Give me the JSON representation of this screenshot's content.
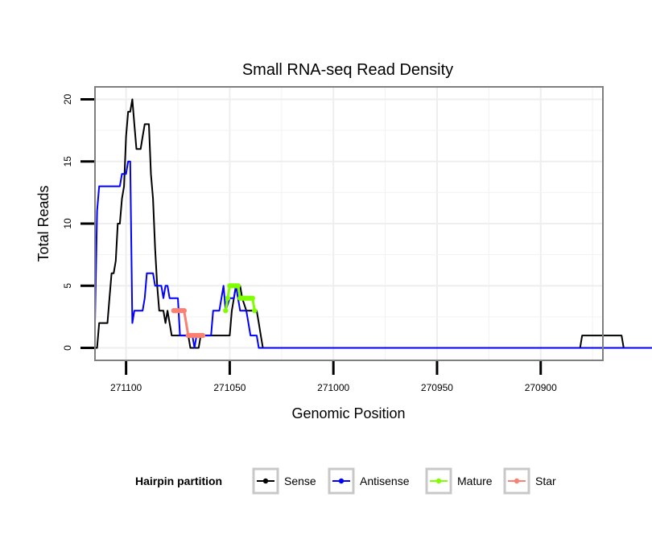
{
  "chart_data": {
    "type": "line",
    "title": "Small RNA-seq Read Density",
    "xlabel": "Genomic Position",
    "ylabel": "Total Reads",
    "x_reversed": true,
    "xlim": [
      271115,
      270870
    ],
    "ylim": [
      -1,
      21
    ],
    "x_ticks": [
      271100,
      271050,
      271000,
      270950,
      270900
    ],
    "x_tick_labels": [
      "271100",
      "271050",
      "271000",
      "270950",
      "270900"
    ],
    "y_ticks": [
      0,
      5,
      10,
      15,
      20
    ],
    "y_tick_labels": [
      "0",
      "5",
      "10",
      "15",
      "20"
    ],
    "grid": true,
    "legend": {
      "title": "Hairpin partition",
      "position": "bottom",
      "entries": [
        {
          "name": "Sense",
          "color": "#000000"
        },
        {
          "name": "Antisense",
          "color": "#0000ff"
        },
        {
          "name": "Mature",
          "color": "#7fff00"
        },
        {
          "name": "Star",
          "color": "#fa8072"
        }
      ]
    },
    "series": [
      {
        "name": "Sense",
        "color": "#000000",
        "points": [
          [
            271115,
            0
          ],
          [
            271114,
            0
          ],
          [
            271113,
            2
          ],
          [
            271109,
            2
          ],
          [
            271108,
            4
          ],
          [
            271107,
            6
          ],
          [
            271106,
            6
          ],
          [
            271105,
            7
          ],
          [
            271104,
            10
          ],
          [
            271103,
            10
          ],
          [
            271102,
            12
          ],
          [
            271101,
            13
          ],
          [
            271100,
            17
          ],
          [
            271099,
            19
          ],
          [
            271098,
            19
          ],
          [
            271097,
            20
          ],
          [
            271096,
            18
          ],
          [
            271095,
            16
          ],
          [
            271093,
            16
          ],
          [
            271092,
            17
          ],
          [
            271091,
            18
          ],
          [
            271089,
            18
          ],
          [
            271088,
            14
          ],
          [
            271087,
            12
          ],
          [
            271086,
            8
          ],
          [
            271085,
            5
          ],
          [
            271084,
            3
          ],
          [
            271082,
            3
          ],
          [
            271081,
            2
          ],
          [
            271080,
            3
          ],
          [
            271079,
            2
          ],
          [
            271078,
            1
          ],
          [
            271070,
            1
          ],
          [
            271069,
            0
          ],
          [
            271065,
            0
          ],
          [
            271064,
            1
          ],
          [
            271050,
            1
          ],
          [
            271049,
            3
          ],
          [
            271048,
            4
          ],
          [
            271047,
            5
          ],
          [
            271045,
            5
          ],
          [
            271044,
            4
          ],
          [
            271042,
            3
          ],
          [
            271037,
            3
          ],
          [
            271036,
            2
          ],
          [
            271035,
            1
          ],
          [
            271034,
            0
          ],
          [
            270881,
            0
          ],
          [
            270880,
            1
          ],
          [
            270861,
            1
          ],
          [
            270860,
            0
          ],
          [
            270840,
            0
          ]
        ]
      },
      {
        "name": "Antisense",
        "color": "#0000ff",
        "points": [
          [
            271115,
            2
          ],
          [
            271114,
            11
          ],
          [
            271113,
            13
          ],
          [
            271103,
            13
          ],
          [
            271102,
            14
          ],
          [
            271100,
            14
          ],
          [
            271099,
            15
          ],
          [
            271098,
            15
          ],
          [
            271097,
            2
          ],
          [
            271096,
            3
          ],
          [
            271092,
            3
          ],
          [
            271091,
            4
          ],
          [
            271090,
            6
          ],
          [
            271087,
            6
          ],
          [
            271086,
            5
          ],
          [
            271083,
            5
          ],
          [
            271082,
            4
          ],
          [
            271081,
            5
          ],
          [
            271080,
            5
          ],
          [
            271079,
            4
          ],
          [
            271075,
            4
          ],
          [
            271074,
            1
          ],
          [
            271068,
            1
          ],
          [
            271067,
            0
          ],
          [
            271066,
            1
          ],
          [
            271059,
            1
          ],
          [
            271058,
            3
          ],
          [
            271055,
            3
          ],
          [
            271054,
            4
          ],
          [
            271053,
            5
          ],
          [
            271052,
            3
          ],
          [
            271050,
            4
          ],
          [
            271048,
            4
          ],
          [
            271047,
            5
          ],
          [
            271045,
            3
          ],
          [
            271042,
            3
          ],
          [
            271041,
            2
          ],
          [
            271040,
            1
          ],
          [
            271037,
            1
          ],
          [
            271036,
            0
          ],
          [
            270860,
            0
          ],
          [
            270840,
            0
          ]
        ]
      },
      {
        "name": "Mature",
        "color": "#7fff00",
        "points": [
          [
            271052,
            3
          ],
          [
            271051,
            4
          ],
          [
            271050,
            5
          ],
          [
            271049,
            5
          ],
          [
            271048,
            5
          ],
          [
            271047,
            5
          ],
          [
            271046,
            5
          ],
          [
            271045,
            4
          ],
          [
            271044,
            4
          ],
          [
            271043,
            4
          ],
          [
            271042,
            4
          ],
          [
            271041,
            4
          ],
          [
            271040,
            4
          ],
          [
            271039,
            4
          ],
          [
            271038,
            3
          ]
        ]
      },
      {
        "name": "Star",
        "color": "#fa8072",
        "points": [
          [
            271077,
            3
          ],
          [
            271076,
            3
          ],
          [
            271075,
            3
          ],
          [
            271074,
            3
          ],
          [
            271073,
            3
          ],
          [
            271072,
            3
          ],
          [
            271070,
            1
          ],
          [
            271069,
            1
          ],
          [
            271068,
            1
          ],
          [
            271067,
            1
          ],
          [
            271066,
            1
          ],
          [
            271065,
            1
          ],
          [
            271064,
            1
          ],
          [
            271063,
            1
          ]
        ]
      }
    ]
  }
}
